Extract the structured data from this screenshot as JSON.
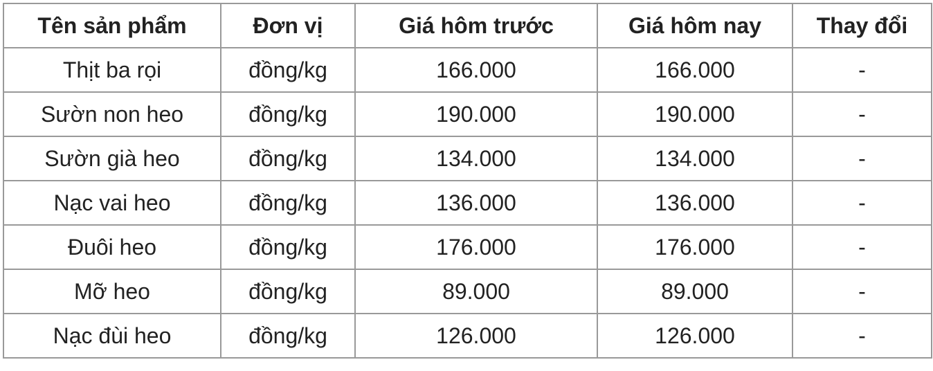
{
  "table": {
    "headers": [
      "Tên sản phẩm",
      "Đơn vị",
      "Giá hôm trước",
      "Giá hôm nay",
      "Thay đổi"
    ],
    "rows": [
      [
        "Thịt ba rọi",
        "đồng/kg",
        "166.000",
        "166.000",
        "-"
      ],
      [
        "Sườn non heo",
        "đồng/kg",
        "190.000",
        "190.000",
        "-"
      ],
      [
        "Sườn già heo",
        "đồng/kg",
        "134.000",
        "134.000",
        "-"
      ],
      [
        "Nạc vai heo",
        "đồng/kg",
        "136.000",
        "136.000",
        "-"
      ],
      [
        "Đuôi heo",
        "đồng/kg",
        "176.000",
        "176.000",
        "-"
      ],
      [
        "Mỡ heo",
        "đồng/kg",
        "89.000",
        "89.000",
        "-"
      ],
      [
        "Nạc đùi heo",
        "đồng/kg",
        "126.000",
        "126.000",
        "-"
      ]
    ]
  }
}
